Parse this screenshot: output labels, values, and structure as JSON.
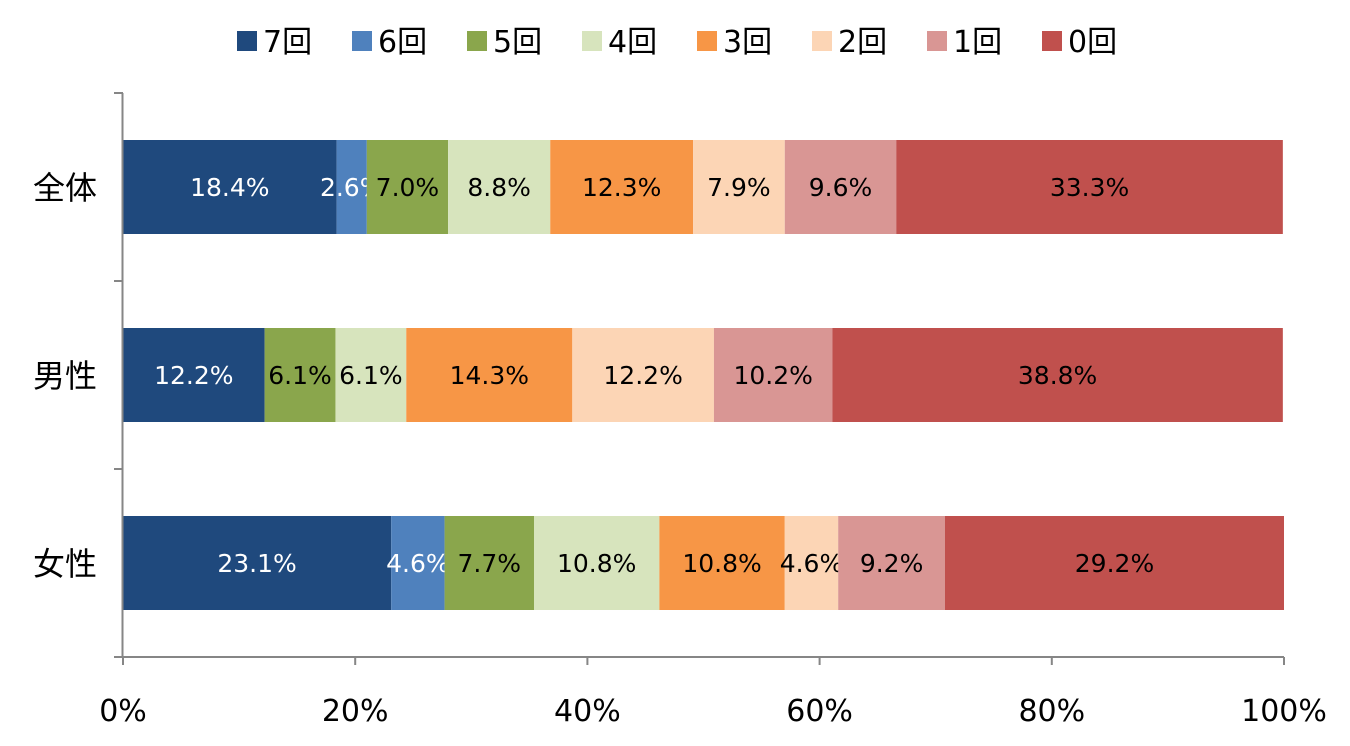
{
  "chart_data": {
    "type": "bar",
    "orientation": "horizontal",
    "stacked": "percent",
    "title": "",
    "xlabel": "",
    "ylabel": "",
    "xlim": [
      0,
      100
    ],
    "x_ticks": [
      "0%",
      "20%",
      "40%",
      "60%",
      "80%",
      "100%"
    ],
    "legend_position": "top",
    "categories": [
      "全体",
      "男性",
      "女性"
    ],
    "series": [
      {
        "name": "7回",
        "color": "#1F497D",
        "label_color": "#FFFFFF",
        "values": [
          18.4,
          12.2,
          23.1
        ]
      },
      {
        "name": "6回",
        "color": "#4F81BD",
        "label_color": "#FFFFFF",
        "values": [
          2.6,
          0,
          4.6
        ]
      },
      {
        "name": "5回",
        "color": "#8AA64C",
        "label_color": "#000000",
        "values": [
          7.0,
          6.1,
          7.7
        ]
      },
      {
        "name": "4回",
        "color": "#D7E4BD",
        "label_color": "#000000",
        "values": [
          8.8,
          6.1,
          10.8
        ]
      },
      {
        "name": "3回",
        "color": "#F79646",
        "label_color": "#000000",
        "values": [
          12.3,
          14.3,
          10.8
        ]
      },
      {
        "name": "2回",
        "color": "#FCD5B5",
        "label_color": "#000000",
        "values": [
          7.9,
          12.2,
          4.6
        ]
      },
      {
        "name": "1回",
        "color": "#D99694",
        "label_color": "#000000",
        "values": [
          9.6,
          10.2,
          9.2
        ]
      },
      {
        "name": "0回",
        "color": "#C0504D",
        "label_color": "#000000",
        "values": [
          33.3,
          38.8,
          29.2
        ]
      }
    ]
  }
}
